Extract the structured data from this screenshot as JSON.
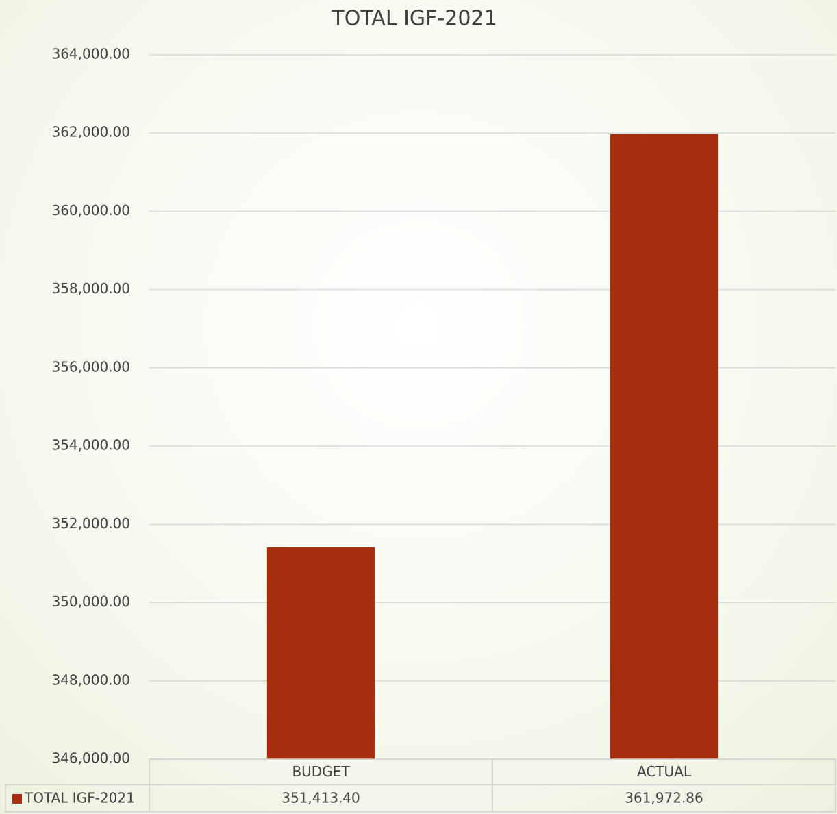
{
  "chart_data": {
    "type": "bar",
    "title": "TOTAL IGF-2021",
    "categories": [
      "BUDGET",
      "ACTUAL"
    ],
    "series": [
      {
        "name": "TOTAL IGF-2021",
        "color": "#a52f0f",
        "values": [
          351413.4,
          361972.86
        ],
        "value_labels": [
          "351,413.40",
          "361,972.86"
        ]
      }
    ],
    "ylim": [
      346000,
      364000
    ],
    "yticks": [
      {
        "value": 346000,
        "label": "346,000.00"
      },
      {
        "value": 348000,
        "label": "348,000.00"
      },
      {
        "value": 350000,
        "label": "350,000.00"
      },
      {
        "value": 352000,
        "label": "352,000.00"
      },
      {
        "value": 354000,
        "label": "354,000.00"
      },
      {
        "value": 356000,
        "label": "356,000.00"
      },
      {
        "value": 358000,
        "label": "358,000.00"
      },
      {
        "value": 360000,
        "label": "360,000.00"
      },
      {
        "value": 362000,
        "label": "362,000.00"
      },
      {
        "value": 364000,
        "label": "364,000.00"
      }
    ],
    "grid": true,
    "data_table": true
  }
}
